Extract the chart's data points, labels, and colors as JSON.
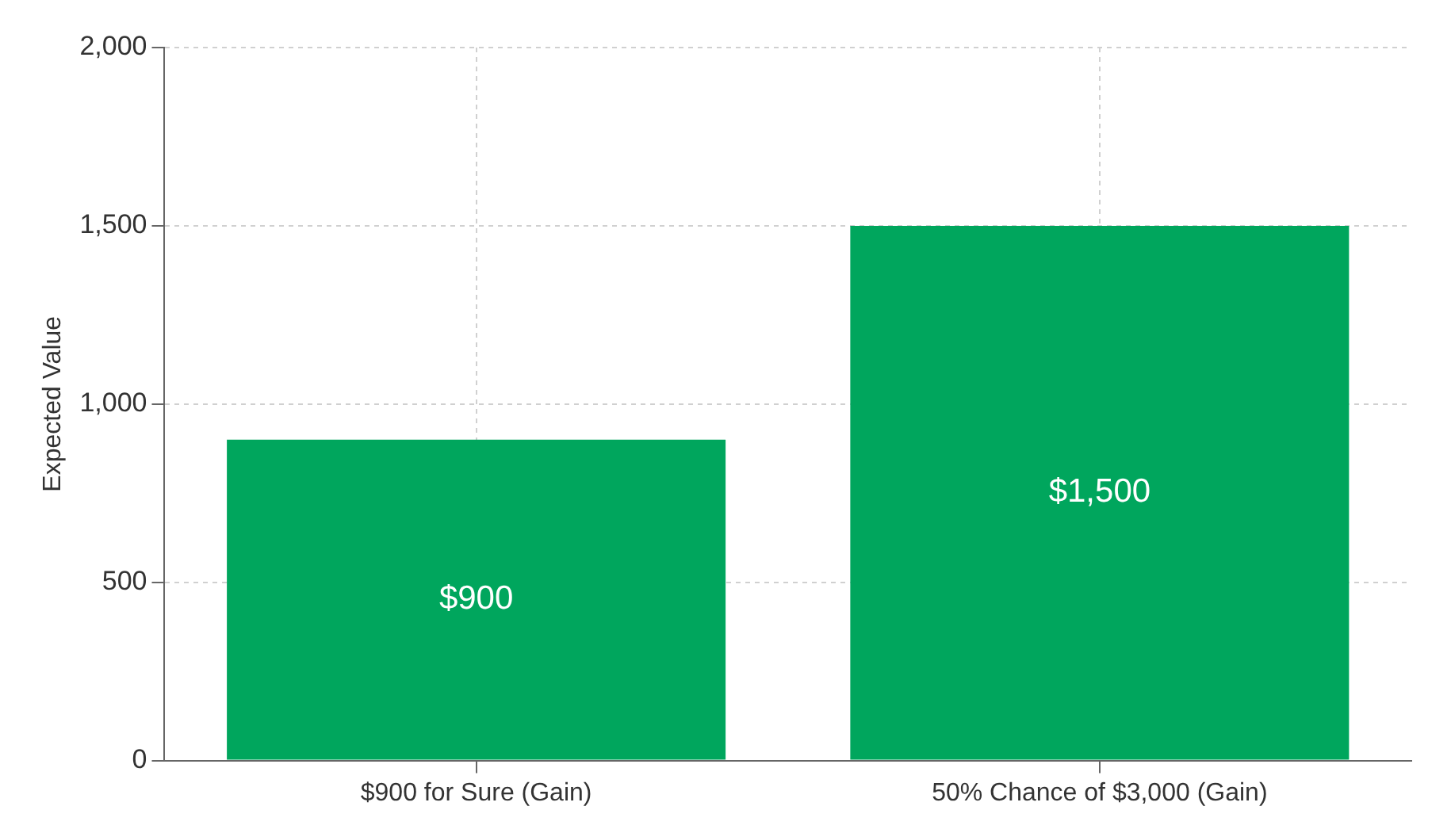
{
  "chart_data": {
    "type": "bar",
    "ylabel": "Expected Value",
    "categories": [
      "$900 for Sure (Gain)",
      "50% Chance of $3,000 (Gain)"
    ],
    "values": [
      900,
      1500
    ],
    "value_labels": [
      "$900",
      "$1,500"
    ],
    "color": "#00a65d",
    "ylim": [
      0,
      2000
    ],
    "yticks": [
      0,
      500,
      {
        "value": 1000,
        "label": "1,000"
      },
      {
        "value": 1500,
        "label": "1,500"
      },
      {
        "value": 2000,
        "label": "2,000"
      }
    ],
    "grid": true,
    "legend": false
  }
}
